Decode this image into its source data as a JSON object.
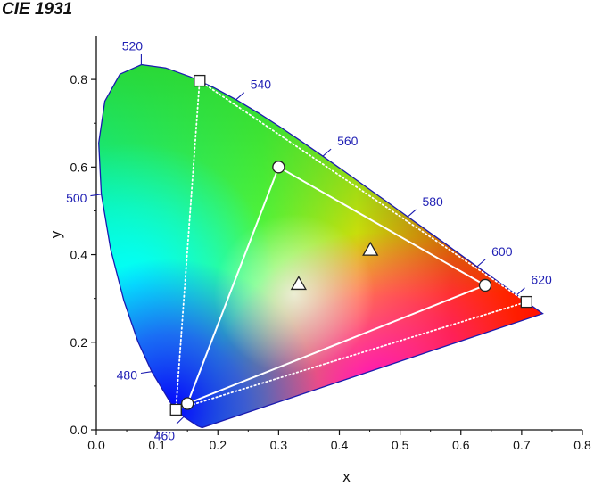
{
  "title": "CIE 1931",
  "chart_data": {
    "type": "scatter",
    "title": "CIE 1931",
    "xlabel": "x",
    "ylabel": "y",
    "xlim": [
      0.0,
      0.8
    ],
    "ylim": [
      0.0,
      0.9
    ],
    "x_ticks": [
      "0.0",
      "0.1",
      "0.2",
      "0.3",
      "0.4",
      "0.5",
      "0.6",
      "0.7",
      "0.8"
    ],
    "y_ticks": [
      "0.0",
      "0.2",
      "0.4",
      "0.6",
      "0.8"
    ],
    "grid": false,
    "colors": {
      "outline": "#1a1ab0",
      "wavelength_label": "#1f1fb4",
      "gamut_line": "#ffffff"
    },
    "spectral_locus": [
      [
        0.1741,
        0.005
      ],
      [
        0.1666,
        0.0089
      ],
      [
        0.144,
        0.0297
      ],
      [
        0.1241,
        0.0578
      ],
      [
        0.0913,
        0.1327
      ],
      [
        0.0687,
        0.2007
      ],
      [
        0.0454,
        0.295
      ],
      [
        0.0235,
        0.4127
      ],
      [
        0.0082,
        0.5384
      ],
      [
        0.0039,
        0.6548
      ],
      [
        0.0139,
        0.7502
      ],
      [
        0.0389,
        0.812
      ],
      [
        0.0743,
        0.8338
      ],
      [
        0.1142,
        0.8262
      ],
      [
        0.1547,
        0.8059
      ],
      [
        0.1929,
        0.7816
      ],
      [
        0.2296,
        0.7543
      ],
      [
        0.2658,
        0.7243
      ],
      [
        0.3016,
        0.6923
      ],
      [
        0.3373,
        0.6589
      ],
      [
        0.3731,
        0.6245
      ],
      [
        0.4087,
        0.5896
      ],
      [
        0.4441,
        0.5547
      ],
      [
        0.4788,
        0.5202
      ],
      [
        0.5125,
        0.4866
      ],
      [
        0.5448,
        0.4544
      ],
      [
        0.5752,
        0.4242
      ],
      [
        0.6029,
        0.3965
      ],
      [
        0.627,
        0.3725
      ],
      [
        0.6482,
        0.3514
      ],
      [
        0.6658,
        0.334
      ],
      [
        0.6801,
        0.3197
      ],
      [
        0.6915,
        0.3083
      ],
      [
        0.7006,
        0.2993
      ],
      [
        0.7079,
        0.292
      ],
      [
        0.714,
        0.2859
      ],
      [
        0.7347,
        0.2653
      ]
    ],
    "wavelength_markers": [
      {
        "label": "460",
        "x": 0.144,
        "y": 0.03,
        "dir": "down-left"
      },
      {
        "label": "480",
        "x": 0.091,
        "y": 0.133,
        "dir": "left"
      },
      {
        "label": "500",
        "x": 0.008,
        "y": 0.538,
        "dir": "left"
      },
      {
        "label": "520",
        "x": 0.074,
        "y": 0.834,
        "dir": "up"
      },
      {
        "label": "540",
        "x": 0.23,
        "y": 0.754,
        "dir": "up-right"
      },
      {
        "label": "560",
        "x": 0.373,
        "y": 0.625,
        "dir": "up-right"
      },
      {
        "label": "580",
        "x": 0.513,
        "y": 0.487,
        "dir": "up-right"
      },
      {
        "label": "600",
        "x": 0.627,
        "y": 0.373,
        "dir": "up-right"
      },
      {
        "label": "620",
        "x": 0.692,
        "y": 0.308,
        "dir": "up-right"
      }
    ],
    "series": [
      {
        "marker": "circle",
        "line": "solid",
        "x": [
          0.64,
          0.3,
          0.15
        ],
        "y": [
          0.33,
          0.6,
          0.06
        ]
      },
      {
        "marker": "square",
        "line": "dotted",
        "x": [
          0.708,
          0.17,
          0.131
        ],
        "y": [
          0.292,
          0.797,
          0.046
        ]
      },
      {
        "marker": "triangle",
        "line": "none",
        "x": [
          0.333,
          0.451
        ],
        "y": [
          0.333,
          0.411
        ]
      }
    ]
  }
}
